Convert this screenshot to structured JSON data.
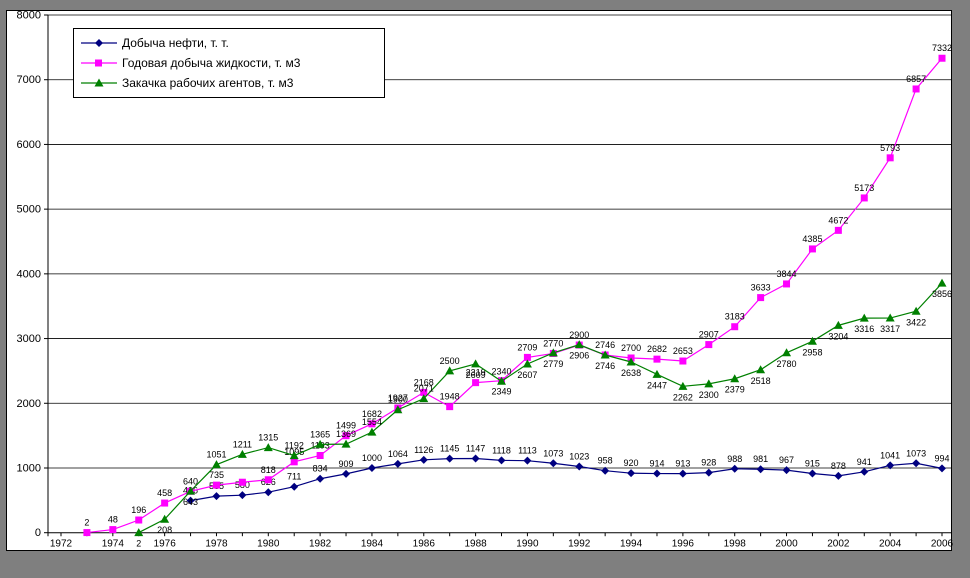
{
  "chart_data": {
    "type": "line",
    "title": "",
    "xlabel": "",
    "ylabel": "",
    "ylim": [
      0,
      8000
    ],
    "y_tick_step": 1000,
    "y_ticks": [
      0,
      1000,
      2000,
      3000,
      4000,
      5000,
      6000,
      7000,
      8000
    ],
    "x": [
      1972,
      1973,
      1974,
      1975,
      1976,
      1977,
      1978,
      1979,
      1980,
      1981,
      1982,
      1983,
      1984,
      1985,
      1986,
      1987,
      1988,
      1989,
      1990,
      1991,
      1992,
      1993,
      1994,
      1995,
      1996,
      1997,
      1998,
      1999,
      2000,
      2001,
      2002,
      2003,
      2004,
      2005,
      2006
    ],
    "x_tick_labels": [
      "1972",
      "1974",
      "1976",
      "1978",
      "1980",
      "1982",
      "1984",
      "1986",
      "1988",
      "1990",
      "1992",
      "1994",
      "1996",
      "1998",
      "2000",
      "2002",
      "2004",
      "2006"
    ],
    "grid": "horizontal",
    "legend_position": "top-left",
    "series": [
      {
        "name": "Добыча нефти, т. т.",
        "color": "#000080",
        "marker": "diamond",
        "values": [
          null,
          null,
          null,
          null,
          null,
          496,
          565,
          580,
          626,
          711,
          834,
          909,
          1000,
          1064,
          1126,
          1145,
          1147,
          1118,
          1113,
          1073,
          1023,
          958,
          920,
          914,
          913,
          928,
          988,
          981,
          967,
          915,
          878,
          941,
          1041,
          1073,
          994
        ],
        "label_below_years": [],
        "no_label_years": []
      },
      {
        "name": "Годовая добыча жидкости, т. м3",
        "color": "#ff00ff",
        "marker": "square",
        "values": [
          null,
          2,
          48,
          196,
          458,
          640,
          735,
          780,
          818,
          1095,
          1193,
          1499,
          1682,
          1927,
          2168,
          1948,
          2319,
          2349,
          2709,
          2770,
          2900,
          2746,
          2700,
          2682,
          2653,
          2907,
          3183,
          3633,
          3844,
          4385,
          4672,
          5173,
          5793,
          6857,
          7332
        ],
        "label_below_years": [
          1989
        ],
        "no_label_years": [
          1979
        ]
      },
      {
        "name": "Закачка рабочих агентов, т. м3",
        "color": "#008000",
        "marker": "triangle",
        "values": [
          null,
          null,
          null,
          2,
          208,
          643,
          1051,
          1211,
          1315,
          1192,
          1365,
          1369,
          1554,
          1900,
          2071,
          2500,
          2609,
          2340,
          2607,
          2779,
          2906,
          2746,
          2638,
          2447,
          2262,
          2300,
          2379,
          2518,
          2780,
          2958,
          3204,
          3316,
          3317,
          3422,
          3856
        ],
        "label_below_years": [
          1975,
          1976,
          1977,
          1988,
          1990,
          1991,
          1992,
          1993,
          1994,
          1995,
          1996,
          1997,
          1998,
          1999,
          2000,
          2001,
          2002,
          2003,
          2004,
          2005,
          2006
        ],
        "no_label_years": []
      }
    ]
  },
  "colors": {
    "page_background": "#7f7f7f",
    "plot_background": "#ffffff",
    "gridline": "#000000",
    "axis": "#000000",
    "label_text": "#000000"
  }
}
